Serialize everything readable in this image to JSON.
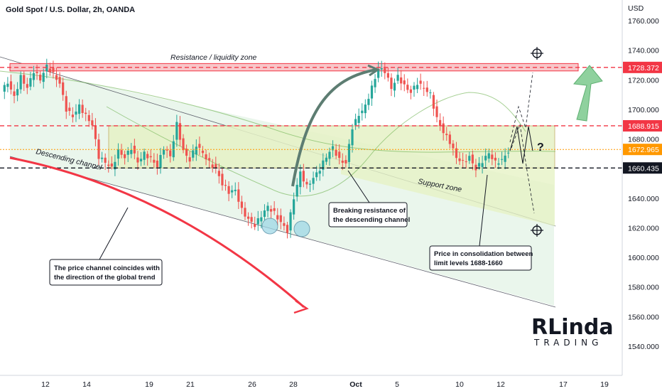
{
  "header": {
    "title": "Gold Spot / U.S. Dollar, 2h, OANDA",
    "currency": "USD"
  },
  "chart_data": {
    "type": "candlestick",
    "title": "Gold Spot / U.S. Dollar, 2h, OANDA",
    "ylabel": "USD",
    "ylim": [
      1528,
      1776
    ],
    "y_ticks": [
      1540,
      1560,
      1580,
      1600,
      1620,
      1640,
      1660,
      1680,
      1700,
      1720,
      1740,
      1760
    ],
    "y_tick_labels": [
      "1540.000",
      "1560.000",
      "1580.000",
      "1600.000",
      "1620.000",
      "1640.000",
      "1660.000",
      "1680.000",
      "1700.000",
      "1720.000",
      "1740.000",
      "1760.000"
    ],
    "x_ticks": [
      "12",
      "14",
      "19",
      "21",
      "26",
      "28",
      "Oct",
      "5",
      "10",
      "12",
      "17",
      "19"
    ],
    "levels": [
      {
        "label": "1728.372",
        "value": 1728.372,
        "color": "#f23645"
      },
      {
        "label": "1688.915",
        "value": 1688.915,
        "color": "#f23645"
      },
      {
        "label": "1672.965",
        "value": 1672.965,
        "color": "#ff9800"
      },
      {
        "label": "1660.435",
        "value": 1660.435,
        "color": "#131722"
      }
    ],
    "price_path": [
      1712,
      1718,
      1708,
      1722,
      1715,
      1726,
      1720,
      1729,
      1724,
      1718,
      1700,
      1695,
      1702,
      1696,
      1690,
      1668,
      1664,
      1660,
      1672,
      1668,
      1674,
      1664,
      1670,
      1667,
      1662,
      1674,
      1668,
      1690,
      1672,
      1666,
      1676,
      1670,
      1664,
      1660,
      1650,
      1644,
      1645,
      1632,
      1626,
      1622,
      1628,
      1634,
      1630,
      1624,
      1618,
      1640,
      1657,
      1648,
      1654,
      1660,
      1668,
      1674,
      1666,
      1664,
      1688,
      1696,
      1702,
      1715,
      1728,
      1726,
      1714,
      1722,
      1716,
      1712,
      1718,
      1714,
      1710,
      1694,
      1685,
      1678,
      1667,
      1664,
      1668,
      1660,
      1665,
      1670,
      1664,
      1666,
      1672
    ],
    "annotations": [
      "Resistance / liquidity zone",
      "Descending channel",
      "Support zone",
      "Breaking resistance of the descending channel",
      "The price channel coincides with the direction of the global trend",
      "Price in consolidation between limit levels 1688-1660",
      "?"
    ]
  },
  "annotations": {
    "resistance_zone": "Resistance / liquidity zone",
    "descending_channel": "Descending channel",
    "support_zone": "Support zone",
    "breaking_line1": "Breaking resistance of",
    "breaking_line2": "the descending channel",
    "channel_line1": "The price channel coincides with",
    "channel_line2": "the direction of the global trend",
    "consol_line1": "Price in consolidation between",
    "consol_line2": "limit levels 1688-1660",
    "question": "?"
  },
  "logo": {
    "big": "RLinda",
    "small": "TRADING"
  },
  "colors": {
    "up": "#26a69a",
    "down": "#ef5350",
    "resistance": "#f23645",
    "support_zone": "#e6f2c6",
    "channel": "#d8eedd",
    "green_arrow": "#8fd19e"
  }
}
